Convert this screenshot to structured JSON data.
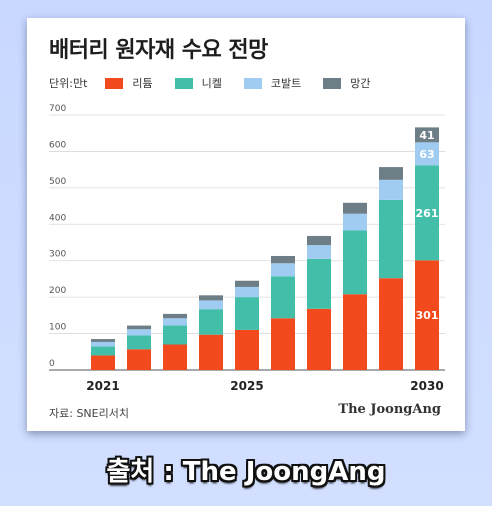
{
  "chart_data": {
    "type": "bar",
    "stacked": true,
    "title": "배터리 원자재 수요 전망",
    "unit_label": "단위:만t",
    "categories": [
      "2021",
      "2022",
      "2023",
      "2024",
      "2025",
      "2026",
      "2027",
      "2028",
      "2029",
      "2030"
    ],
    "x_tick_labels": [
      "2021",
      "2025",
      "2030"
    ],
    "y_ticks": [
      0,
      100,
      200,
      300,
      400,
      500,
      600,
      700
    ],
    "ylim": [
      0,
      700
    ],
    "grid": true,
    "legend_position": "top",
    "series": [
      {
        "name": "리튬",
        "color": "#f24a1d",
        "values": [
          40,
          57,
          70,
          97,
          110,
          142,
          168,
          208,
          252,
          301
        ]
      },
      {
        "name": "니켈",
        "color": "#43bfa9",
        "values": [
          25,
          38,
          52,
          70,
          90,
          115,
          137,
          175,
          215,
          261
        ]
      },
      {
        "name": "코발트",
        "color": "#9fccf0",
        "values": [
          12,
          17,
          20,
          24,
          28,
          36,
          38,
          46,
          55,
          63
        ]
      },
      {
        "name": "망간",
        "color": "#6e7e87",
        "values": [
          8,
          10,
          12,
          14,
          17,
          20,
          25,
          30,
          35,
          41
        ]
      }
    ],
    "value_labels_last": [
      "41",
      "63",
      "261",
      "301"
    ]
  },
  "footer": {
    "source": "자료: SNE리서치",
    "brand": "The JoongAng"
  },
  "caption": "출처 : The JoongAng"
}
